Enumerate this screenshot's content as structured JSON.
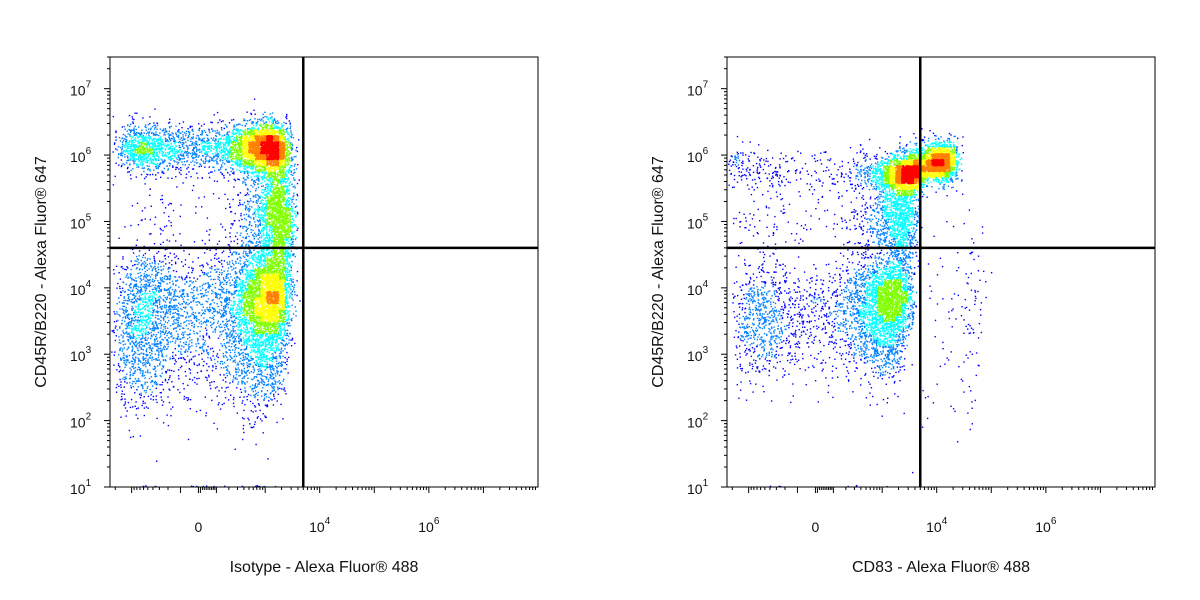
{
  "colors": {
    "frame": "#000000",
    "gate": "#000000",
    "density": [
      "#0000ff",
      "#0080ff",
      "#00ffff",
      "#80ff00",
      "#ffff00",
      "#ff8000",
      "#ff0000"
    ]
  },
  "chart_data": [
    {
      "type": "scatter",
      "subtype": "flow-cytometry-density-dot-plot",
      "title": "",
      "xlabel": "Isotype - Alexa Fluor® 488",
      "ylabel": "CD45R/B220 - Alexa Fluor® 647",
      "x_scale": "biexponential",
      "y_scale": "log",
      "xlim": [
        -2500,
        100000000
      ],
      "ylim": [
        10,
        30000000
      ],
      "x_ticks": [
        {
          "value": 0,
          "base": "0",
          "exp": ""
        },
        {
          "value": 10000,
          "base": "10",
          "exp": "4"
        },
        {
          "value": 1000000,
          "base": "10",
          "exp": "6"
        }
      ],
      "y_ticks": [
        {
          "value": 10,
          "base": "10",
          "exp": "1"
        },
        {
          "value": 100,
          "base": "10",
          "exp": "2"
        },
        {
          "value": 1000,
          "base": "10",
          "exp": "3"
        },
        {
          "value": 10000,
          "base": "10",
          "exp": "4"
        },
        {
          "value": 100000,
          "base": "10",
          "exp": "5"
        },
        {
          "value": 1000000,
          "base": "10",
          "exp": "6"
        },
        {
          "value": 10000000,
          "base": "10",
          "exp": "7"
        }
      ],
      "gates": {
        "x": 5000,
        "y": 40000
      },
      "populations": [
        {
          "x_center": 600,
          "y_center": 1300000,
          "x_spread": 900,
          "y_spread_log10": 0.18,
          "weight": 0.34
        },
        {
          "x_center": 1500,
          "y_center": 130000,
          "x_spread": 800,
          "y_spread_log10": 0.45,
          "weight": 0.16
        },
        {
          "x_center": 800,
          "y_center": 8000,
          "x_spread": 900,
          "y_spread_log10": 0.35,
          "weight": 0.28
        },
        {
          "x_center": 200,
          "y_center": 1500,
          "x_spread": 900,
          "y_spread_log10": 0.5,
          "weight": 0.2
        },
        {
          "x_center": 400,
          "y_center": 10,
          "x_spread": 700,
          "y_spread_log10": 0.01,
          "weight": 0.02
        }
      ],
      "n_events": 13000
    },
    {
      "type": "scatter",
      "subtype": "flow-cytometry-density-dot-plot",
      "title": "",
      "xlabel": "CD83 - Alexa Fluor® 488",
      "ylabel": "CD45R/B220 - Alexa Fluor® 647",
      "x_scale": "biexponential",
      "y_scale": "log",
      "xlim": [
        -2500,
        100000000
      ],
      "ylim": [
        10,
        30000000
      ],
      "x_ticks": [
        {
          "value": 0,
          "base": "0",
          "exp": ""
        },
        {
          "value": 10000,
          "base": "10",
          "exp": "4"
        },
        {
          "value": 1000000,
          "base": "10",
          "exp": "6"
        }
      ],
      "y_ticks": [
        {
          "value": 10,
          "base": "10",
          "exp": "1"
        },
        {
          "value": 100,
          "base": "10",
          "exp": "2"
        },
        {
          "value": 1000,
          "base": "10",
          "exp": "3"
        },
        {
          "value": 10000,
          "base": "10",
          "exp": "4"
        },
        {
          "value": 100000,
          "base": "10",
          "exp": "5"
        },
        {
          "value": 1000000,
          "base": "10",
          "exp": "6"
        },
        {
          "value": 10000000,
          "base": "10",
          "exp": "7"
        }
      ],
      "gates": {
        "x": 5000,
        "y": 40000
      },
      "populations": [
        {
          "x_center": 2500,
          "y_center": 500000,
          "x_spread": 1500,
          "y_spread_log10": 0.12,
          "weight": 0.2
        },
        {
          "x_center": 9000,
          "y_center": 800000,
          "x_spread": 6000,
          "y_spread_log10": 0.14,
          "weight": 0.24
        },
        {
          "x_center": 1800,
          "y_center": 120000,
          "x_spread": 1200,
          "y_spread_log10": 0.35,
          "weight": 0.14
        },
        {
          "x_center": 1200,
          "y_center": 8000,
          "x_spread": 1000,
          "y_spread_log10": 0.3,
          "weight": 0.2
        },
        {
          "x_center": 400,
          "y_center": 2500,
          "x_spread": 900,
          "y_spread_log10": 0.4,
          "weight": 0.18
        },
        {
          "x_center": 300,
          "y_center": 10,
          "x_spread": 700,
          "y_spread_log10": 0.01,
          "weight": 0.02
        },
        {
          "x_center": 12000,
          "y_center": 3000,
          "x_spread": 30000,
          "y_spread_log10": 0.9,
          "weight": 0.02
        }
      ],
      "n_events": 10000
    }
  ]
}
